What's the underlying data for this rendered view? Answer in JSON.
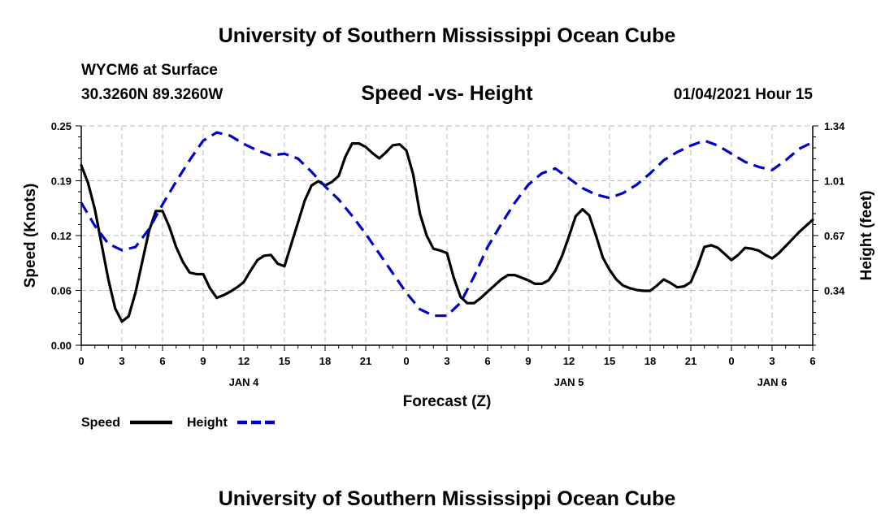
{
  "header": {
    "title_top": "University of Southern Mississippi Ocean Cube",
    "station": "WYCM6 at Surface",
    "coords": "30.3260N 89.3260W",
    "subtitle": "Speed -vs- Height",
    "datetime": "01/04/2021 Hour 15",
    "title_bottom": "University of Southern Mississippi Ocean Cube"
  },
  "colors": {
    "speed": "#000000",
    "height": "#0000cc",
    "grid": "#bbbbbb"
  },
  "chart_data": {
    "type": "line",
    "title": "Speed -vs- Height",
    "xlabel": "Forecast (Z)",
    "ylabel_left": "Speed (Knots)",
    "ylabel_right": "Height (feet)",
    "x_unit": "hours from 00Z Jan 4",
    "xlim": [
      0,
      54
    ],
    "ylim_left": [
      0,
      0.25
    ],
    "ylim_right": [
      0,
      1.34
    ],
    "x_ticks": [
      {
        "x": 0,
        "label": "0"
      },
      {
        "x": 3,
        "label": "3"
      },
      {
        "x": 6,
        "label": "6"
      },
      {
        "x": 9,
        "label": "9"
      },
      {
        "x": 12,
        "label": "12"
      },
      {
        "x": 15,
        "label": "15"
      },
      {
        "x": 18,
        "label": "18"
      },
      {
        "x": 21,
        "label": "21"
      },
      {
        "x": 24,
        "label": "0"
      },
      {
        "x": 27,
        "label": "3"
      },
      {
        "x": 30,
        "label": "6"
      },
      {
        "x": 33,
        "label": "9"
      },
      {
        "x": 36,
        "label": "12"
      },
      {
        "x": 39,
        "label": "15"
      },
      {
        "x": 42,
        "label": "18"
      },
      {
        "x": 45,
        "label": "21"
      },
      {
        "x": 48,
        "label": "0"
      },
      {
        "x": 51,
        "label": "3"
      },
      {
        "x": 54,
        "label": "6"
      }
    ],
    "day_labels": [
      {
        "x": 12,
        "label": "JAN 4"
      },
      {
        "x": 36,
        "label": "JAN 5"
      },
      {
        "x": 51,
        "label": "JAN 6"
      }
    ],
    "y_ticks_left": [
      {
        "v": 0.0,
        "label": "0.00"
      },
      {
        "v": 0.0625,
        "label": "0.06"
      },
      {
        "v": 0.125,
        "label": "0.12"
      },
      {
        "v": 0.1875,
        "label": "0.19"
      },
      {
        "v": 0.25,
        "label": "0.25"
      }
    ],
    "y_ticks_right": [
      {
        "v": 0.335,
        "label": "0.34"
      },
      {
        "v": 0.67,
        "label": "0.67"
      },
      {
        "v": 1.005,
        "label": "1.01"
      },
      {
        "v": 1.34,
        "label": "1.34"
      }
    ],
    "series": [
      {
        "name": "Speed",
        "axis": "left",
        "style": "solid",
        "points": [
          [
            0,
            0.205
          ],
          [
            0.5,
            0.185
          ],
          [
            1,
            0.155
          ],
          [
            1.5,
            0.115
          ],
          [
            2,
            0.075
          ],
          [
            2.5,
            0.042
          ],
          [
            3,
            0.027
          ],
          [
            3.5,
            0.033
          ],
          [
            4,
            0.06
          ],
          [
            4.5,
            0.095
          ],
          [
            5,
            0.13
          ],
          [
            5.5,
            0.153
          ],
          [
            6,
            0.153
          ],
          [
            6.5,
            0.135
          ],
          [
            7,
            0.112
          ],
          [
            7.5,
            0.095
          ],
          [
            8,
            0.083
          ],
          [
            8.5,
            0.081
          ],
          [
            9,
            0.081
          ],
          [
            9.5,
            0.065
          ],
          [
            10,
            0.054
          ],
          [
            10.5,
            0.057
          ],
          [
            11,
            0.061
          ],
          [
            11.5,
            0.066
          ],
          [
            12,
            0.072
          ],
          [
            12.5,
            0.085
          ],
          [
            13,
            0.097
          ],
          [
            13.5,
            0.102
          ],
          [
            14,
            0.103
          ],
          [
            14.5,
            0.093
          ],
          [
            15,
            0.09
          ],
          [
            15.5,
            0.115
          ],
          [
            16,
            0.14
          ],
          [
            16.5,
            0.165
          ],
          [
            17,
            0.182
          ],
          [
            17.5,
            0.187
          ],
          [
            18,
            0.182
          ],
          [
            18.5,
            0.186
          ],
          [
            19,
            0.193
          ],
          [
            19.5,
            0.215
          ],
          [
            20,
            0.23
          ],
          [
            20.5,
            0.23
          ],
          [
            21,
            0.226
          ],
          [
            21.5,
            0.219
          ],
          [
            22,
            0.213
          ],
          [
            22.5,
            0.22
          ],
          [
            23,
            0.228
          ],
          [
            23.5,
            0.229
          ],
          [
            24,
            0.222
          ],
          [
            24.5,
            0.195
          ],
          [
            25,
            0.15
          ],
          [
            25.5,
            0.125
          ],
          [
            26,
            0.11
          ],
          [
            26.5,
            0.108
          ],
          [
            27,
            0.105
          ],
          [
            27.5,
            0.077
          ],
          [
            28,
            0.055
          ],
          [
            28.5,
            0.048
          ],
          [
            29,
            0.048
          ],
          [
            29.5,
            0.054
          ],
          [
            30,
            0.061
          ],
          [
            30.5,
            0.068
          ],
          [
            31,
            0.075
          ],
          [
            31.5,
            0.08
          ],
          [
            32,
            0.08
          ],
          [
            32.5,
            0.077
          ],
          [
            33,
            0.074
          ],
          [
            33.5,
            0.07
          ],
          [
            34,
            0.07
          ],
          [
            34.5,
            0.074
          ],
          [
            35,
            0.085
          ],
          [
            35.5,
            0.102
          ],
          [
            36,
            0.124
          ],
          [
            36.5,
            0.147
          ],
          [
            37,
            0.155
          ],
          [
            37.5,
            0.148
          ],
          [
            38,
            0.125
          ],
          [
            38.5,
            0.1
          ],
          [
            39,
            0.086
          ],
          [
            39.5,
            0.075
          ],
          [
            40,
            0.068
          ],
          [
            40.5,
            0.065
          ],
          [
            41,
            0.063
          ],
          [
            41.5,
            0.062
          ],
          [
            42,
            0.062
          ],
          [
            42.5,
            0.068
          ],
          [
            43,
            0.075
          ],
          [
            43.5,
            0.071
          ],
          [
            44,
            0.066
          ],
          [
            44.5,
            0.067
          ],
          [
            45,
            0.072
          ],
          [
            45.5,
            0.09
          ],
          [
            46,
            0.112
          ],
          [
            46.5,
            0.114
          ],
          [
            47,
            0.111
          ],
          [
            47.5,
            0.104
          ],
          [
            48,
            0.097
          ],
          [
            48.5,
            0.103
          ],
          [
            49,
            0.111
          ],
          [
            49.5,
            0.11
          ],
          [
            50,
            0.108
          ],
          [
            50.5,
            0.103
          ],
          [
            51,
            0.099
          ],
          [
            51.5,
            0.105
          ],
          [
            52,
            0.113
          ],
          [
            52.5,
            0.121
          ],
          [
            53,
            0.129
          ],
          [
            53.5,
            0.136
          ],
          [
            54,
            0.143
          ]
        ]
      },
      {
        "name": "Height",
        "axis": "right",
        "style": "dashed",
        "points": [
          [
            0,
            0.87
          ],
          [
            1,
            0.73
          ],
          [
            2,
            0.62
          ],
          [
            3,
            0.58
          ],
          [
            4,
            0.6
          ],
          [
            5,
            0.71
          ],
          [
            6,
            0.86
          ],
          [
            7,
            1.0
          ],
          [
            8,
            1.13
          ],
          [
            9,
            1.25
          ],
          [
            10,
            1.3
          ],
          [
            11,
            1.28
          ],
          [
            12,
            1.23
          ],
          [
            13,
            1.19
          ],
          [
            14,
            1.16
          ],
          [
            15,
            1.17
          ],
          [
            16,
            1.14
          ],
          [
            17,
            1.06
          ],
          [
            18,
            0.97
          ],
          [
            19,
            0.89
          ],
          [
            20,
            0.79
          ],
          [
            21,
            0.68
          ],
          [
            22,
            0.56
          ],
          [
            23,
            0.44
          ],
          [
            24,
            0.32
          ],
          [
            25,
            0.22
          ],
          [
            26,
            0.18
          ],
          [
            27,
            0.18
          ],
          [
            28,
            0.26
          ],
          [
            29,
            0.42
          ],
          [
            30,
            0.6
          ],
          [
            31,
            0.74
          ],
          [
            32,
            0.87
          ],
          [
            33,
            0.98
          ],
          [
            34,
            1.05
          ],
          [
            35,
            1.08
          ],
          [
            36,
            1.02
          ],
          [
            37,
            0.96
          ],
          [
            38,
            0.92
          ],
          [
            39,
            0.9
          ],
          [
            40,
            0.93
          ],
          [
            41,
            0.98
          ],
          [
            42,
            1.05
          ],
          [
            43,
            1.13
          ],
          [
            44,
            1.18
          ],
          [
            45,
            1.22
          ],
          [
            46,
            1.25
          ],
          [
            47,
            1.22
          ],
          [
            48,
            1.17
          ],
          [
            49,
            1.12
          ],
          [
            50,
            1.09
          ],
          [
            51,
            1.07
          ],
          [
            52,
            1.13
          ],
          [
            53,
            1.2
          ],
          [
            54,
            1.24
          ]
        ]
      }
    ],
    "legend": [
      {
        "label": "Speed",
        "style": "solid"
      },
      {
        "label": "Height",
        "style": "dashed"
      }
    ]
  }
}
